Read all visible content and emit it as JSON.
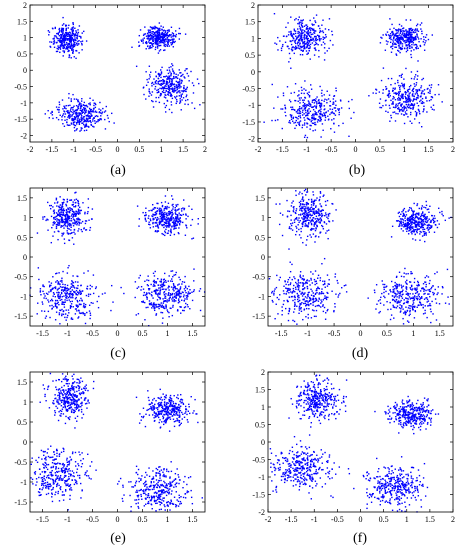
{
  "chart_data": [
    {
      "label": "(a)",
      "type": "scatter",
      "marker_color": "#0000ff",
      "xlim": [
        -2,
        2
      ],
      "ylim": [
        -2.2,
        2
      ],
      "xticks": [
        "-2",
        "-1.5",
        "-1",
        "-0.5",
        "0",
        "0.5",
        "1",
        "1.5",
        "2"
      ],
      "yticks": [
        "2",
        "1.5",
        "1",
        "0.5",
        "0",
        "-0.5",
        "-1",
        "-1.5",
        "-2"
      ],
      "clusters": [
        {
          "center": [
            -1.15,
            0.95
          ],
          "spread": [
            0.17,
            0.22
          ],
          "count": 330
        },
        {
          "center": [
            0.95,
            1.0
          ],
          "spread": [
            0.19,
            0.16
          ],
          "count": 330
        },
        {
          "center": [
            -0.85,
            -1.35
          ],
          "spread": [
            0.27,
            0.22
          ],
          "count": 330
        },
        {
          "center": [
            1.2,
            -0.5
          ],
          "spread": [
            0.26,
            0.3
          ],
          "count": 330
        }
      ]
    },
    {
      "label": "(b)",
      "type": "scatter",
      "marker_color": "#0000ff",
      "xlim": [
        -2,
        2
      ],
      "ylim": [
        -2.1,
        2
      ],
      "xticks": [
        "-2",
        "-1.5",
        "-1",
        "-0.5",
        "0",
        "0.5",
        "1",
        "1.5",
        "2"
      ],
      "yticks": [
        "2",
        "1.5",
        "1",
        "0.5",
        "0",
        "-0.5",
        "-1",
        "-1.5",
        "-2"
      ],
      "clusters": [
        {
          "center": [
            -1.05,
            1.0
          ],
          "spread": [
            0.22,
            0.28
          ],
          "count": 330
        },
        {
          "center": [
            1.0,
            1.0
          ],
          "spread": [
            0.2,
            0.18
          ],
          "count": 330
        },
        {
          "center": [
            -0.9,
            -1.15
          ],
          "spread": [
            0.3,
            0.3
          ],
          "count": 330
        },
        {
          "center": [
            1.05,
            -0.75
          ],
          "spread": [
            0.28,
            0.3
          ],
          "count": 330
        }
      ]
    },
    {
      "label": "(c)",
      "type": "scatter",
      "marker_color": "#0000ff",
      "xlim": [
        -1.75,
        1.75
      ],
      "ylim": [
        -1.75,
        1.75
      ],
      "xticks": [
        "-1.5",
        "-1",
        "-0.5",
        "0",
        "0.5",
        "1",
        "1.5"
      ],
      "yticks": [
        "1.5",
        "1",
        "0.5",
        "0",
        "-0.5",
        "-1",
        "-1.5"
      ],
      "clusters": [
        {
          "center": [
            -1.0,
            1.0
          ],
          "spread": [
            0.2,
            0.25
          ],
          "count": 330
        },
        {
          "center": [
            1.0,
            0.95
          ],
          "spread": [
            0.22,
            0.2
          ],
          "count": 330
        },
        {
          "center": [
            -1.0,
            -1.0
          ],
          "spread": [
            0.28,
            0.28
          ],
          "count": 330
        },
        {
          "center": [
            1.0,
            -0.95
          ],
          "spread": [
            0.3,
            0.28
          ],
          "count": 330
        }
      ]
    },
    {
      "label": "(d)",
      "type": "scatter",
      "marker_color": "#0000ff",
      "xlim": [
        -1.75,
        1.75
      ],
      "ylim": [
        -1.75,
        1.75
      ],
      "xticks": [
        "-1.5",
        "-1",
        "-0.5",
        "0",
        "0.5",
        "1",
        "1.5"
      ],
      "yticks": [
        "1.5",
        "1",
        "0.5",
        "0",
        "-0.5",
        "-1",
        "-1.5"
      ],
      "clusters": [
        {
          "center": [
            -0.95,
            1.1
          ],
          "spread": [
            0.2,
            0.28
          ],
          "count": 330
        },
        {
          "center": [
            1.05,
            0.9
          ],
          "spread": [
            0.2,
            0.18
          ],
          "count": 330
        },
        {
          "center": [
            -1.05,
            -0.95
          ],
          "spread": [
            0.3,
            0.3
          ],
          "count": 330
        },
        {
          "center": [
            0.95,
            -1.0
          ],
          "spread": [
            0.3,
            0.28
          ],
          "count": 330
        }
      ]
    },
    {
      "label": "(e)",
      "type": "scatter",
      "marker_color": "#0000ff",
      "xlim": [
        -1.75,
        1.75
      ],
      "ylim": [
        -1.75,
        1.75
      ],
      "xticks": [
        "-1.5",
        "-1",
        "-0.5",
        "0",
        "0.5",
        "1",
        "1.5"
      ],
      "yticks": [
        "1.5",
        "1",
        "0.5",
        "0",
        "-0.5",
        "-1",
        "-1.5"
      ],
      "clusters": [
        {
          "center": [
            -0.95,
            1.1
          ],
          "spread": [
            0.2,
            0.26
          ],
          "count": 330
        },
        {
          "center": [
            1.0,
            0.8
          ],
          "spread": [
            0.22,
            0.18
          ],
          "count": 330
        },
        {
          "center": [
            -1.2,
            -0.8
          ],
          "spread": [
            0.3,
            0.3
          ],
          "count": 330
        },
        {
          "center": [
            0.8,
            -1.2
          ],
          "spread": [
            0.3,
            0.27
          ],
          "count": 330
        }
      ]
    },
    {
      "label": "(f)",
      "type": "scatter",
      "marker_color": "#0000ff",
      "xlim": [
        -2,
        2
      ],
      "ylim": [
        -2,
        2
      ],
      "xticks": [
        "-2",
        "-1.5",
        "-1",
        "-0.5",
        "0",
        "0.5",
        "1",
        "1.5",
        "2"
      ],
      "yticks": [
        "2",
        "1.5",
        "1",
        "0.5",
        "0",
        "-0.5",
        "-1",
        "-1.5",
        "-2"
      ],
      "clusters": [
        {
          "center": [
            -0.95,
            1.2
          ],
          "spread": [
            0.22,
            0.28
          ],
          "count": 330
        },
        {
          "center": [
            1.1,
            0.8
          ],
          "spread": [
            0.24,
            0.18
          ],
          "count": 330
        },
        {
          "center": [
            -1.25,
            -0.75
          ],
          "spread": [
            0.3,
            0.3
          ],
          "count": 330
        },
        {
          "center": [
            0.75,
            -1.3
          ],
          "spread": [
            0.33,
            0.27
          ],
          "count": 330
        }
      ]
    }
  ]
}
